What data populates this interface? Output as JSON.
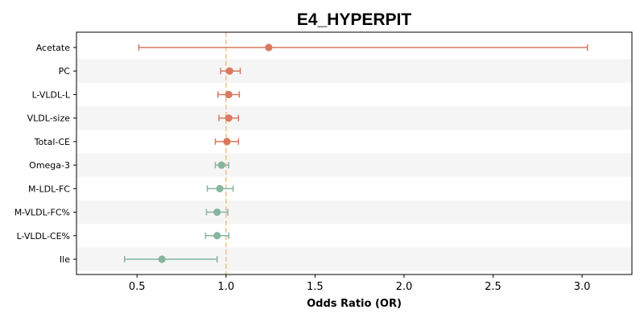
{
  "chart_data": {
    "type": "forest",
    "title": "E4_HYPERPIT",
    "xlabel": "Odds Ratio (OR)",
    "xlim": [
      0.16,
      3.28
    ],
    "xticks": [
      0.5,
      1.0,
      1.5,
      2.0,
      2.5,
      3.0
    ],
    "xtick_labels": [
      "0.5",
      "1.0",
      "1.5",
      "2.0",
      "2.5",
      "3.0"
    ],
    "reference_line": 1.0,
    "reference_color": "#f2c28a",
    "positive_color": "#d9795f",
    "negative_color": "#87b5a0",
    "band_color": "#f5f5f5",
    "rows": [
      {
        "label": "Acetate",
        "or": 1.24,
        "lo": 0.51,
        "hi": 3.03,
        "direction": "positive"
      },
      {
        "label": "PC",
        "or": 1.02,
        "lo": 0.97,
        "hi": 1.08,
        "direction": "positive"
      },
      {
        "label": "L-VLDL-L",
        "or": 1.015,
        "lo": 0.955,
        "hi": 1.075,
        "direction": "positive"
      },
      {
        "label": "VLDL-size",
        "or": 1.015,
        "lo": 0.96,
        "hi": 1.07,
        "direction": "positive"
      },
      {
        "label": "Total-CE",
        "or": 1.005,
        "lo": 0.94,
        "hi": 1.07,
        "direction": "positive"
      },
      {
        "label": "Omega-3",
        "or": 0.975,
        "lo": 0.94,
        "hi": 1.015,
        "direction": "negative"
      },
      {
        "label": "M-LDL-FC",
        "or": 0.965,
        "lo": 0.895,
        "hi": 1.04,
        "direction": "negative"
      },
      {
        "label": "M-VLDL-FC%",
        "or": 0.95,
        "lo": 0.89,
        "hi": 1.01,
        "direction": "negative"
      },
      {
        "label": "L-VLDL-CE%",
        "or": 0.95,
        "lo": 0.885,
        "hi": 1.015,
        "direction": "negative"
      },
      {
        "label": "Ile",
        "or": 0.64,
        "lo": 0.43,
        "hi": 0.95,
        "direction": "negative"
      }
    ]
  }
}
